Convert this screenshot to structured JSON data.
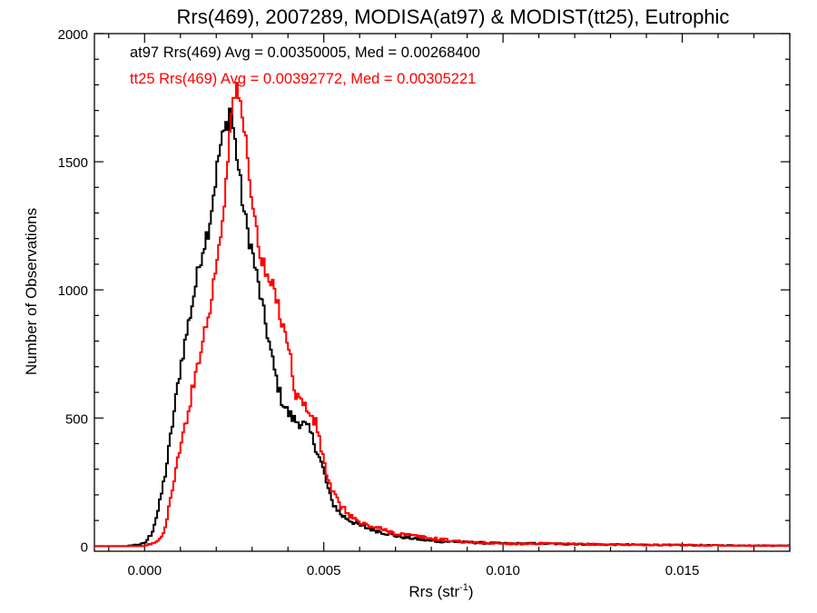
{
  "chart_data": {
    "type": "line",
    "title": "Rrs(469), 2007289, MODISA(at97) & MODIST(tt25), Eutrophic",
    "xlabel_main": "Rrs (str",
    "xlabel_sup": "-1",
    "xlabel_close": ")",
    "ylabel": "Number of Observations",
    "xlim": [
      -0.0014,
      0.018
    ],
    "ylim": [
      -20,
      2000
    ],
    "xticks": [
      0.0,
      0.005,
      0.01,
      0.015
    ],
    "xtick_labels": [
      "0.000",
      "0.005",
      "0.010",
      "0.015"
    ],
    "yticks": [
      0,
      500,
      1000,
      1500,
      2000
    ],
    "ytick_labels": [
      "0",
      "500",
      "1000",
      "1500",
      "2000"
    ],
    "grid": false,
    "legend_placement": "top-left",
    "annotations": [
      {
        "text": "at97 Rrs(469) Avg = 0.00350005, Med = 0.00268400",
        "color": "#000000"
      },
      {
        "text": "tt25 Rrs(469) Avg = 0.00392772, Med = 0.00305221",
        "color": "#ff0000"
      }
    ],
    "series": [
      {
        "color": "#000000",
        "x": [
          -0.0014,
          -0.0005,
          0.0,
          0.0002,
          0.0004,
          0.0006,
          0.0008,
          0.001,
          0.0012,
          0.0014,
          0.0016,
          0.0018,
          0.002,
          0.0021,
          0.0022,
          0.0023,
          0.0024,
          0.0025,
          0.0026,
          0.0027,
          0.0028,
          0.003,
          0.0032,
          0.0034,
          0.0036,
          0.0038,
          0.004,
          0.0042,
          0.0044,
          0.0046,
          0.0048,
          0.005,
          0.0052,
          0.0055,
          0.006,
          0.0065,
          0.007,
          0.008,
          0.009,
          0.01,
          0.011,
          0.012,
          0.013,
          0.014,
          0.015,
          0.016,
          0.017,
          0.018
        ],
        "y": [
          0,
          0,
          10,
          50,
          150,
          300,
          500,
          700,
          850,
          1000,
          1150,
          1250,
          1450,
          1550,
          1600,
          1650,
          1720,
          1600,
          1500,
          1380,
          1280,
          1150,
          1000,
          850,
          700,
          580,
          520,
          490,
          480,
          450,
          380,
          290,
          180,
          120,
          80,
          60,
          40,
          20,
          15,
          10,
          10,
          8,
          6,
          5,
          4,
          3,
          2,
          2
        ]
      },
      {
        "color": "#ff0000",
        "x": [
          -0.0014,
          0.0,
          0.0004,
          0.0006,
          0.0008,
          0.001,
          0.0012,
          0.0014,
          0.0016,
          0.0018,
          0.002,
          0.0022,
          0.0023,
          0.0024,
          0.0025,
          0.0026,
          0.0027,
          0.0028,
          0.0029,
          0.003,
          0.0032,
          0.0034,
          0.0036,
          0.0038,
          0.004,
          0.0042,
          0.0044,
          0.0046,
          0.0048,
          0.005,
          0.0052,
          0.0055,
          0.006,
          0.0065,
          0.007,
          0.008,
          0.009,
          0.01,
          0.011,
          0.012,
          0.013,
          0.014,
          0.015,
          0.016,
          0.017,
          0.018
        ],
        "y": [
          0,
          0,
          20,
          80,
          250,
          380,
          520,
          650,
          800,
          900,
          1100,
          1300,
          1500,
          1640,
          1780,
          1760,
          1700,
          1600,
          1500,
          1350,
          1150,
          1050,
          1000,
          900,
          800,
          600,
          560,
          520,
          470,
          330,
          220,
          150,
          90,
          70,
          50,
          30,
          15,
          10,
          10,
          8,
          6,
          5,
          4,
          3,
          2,
          2
        ]
      }
    ]
  }
}
